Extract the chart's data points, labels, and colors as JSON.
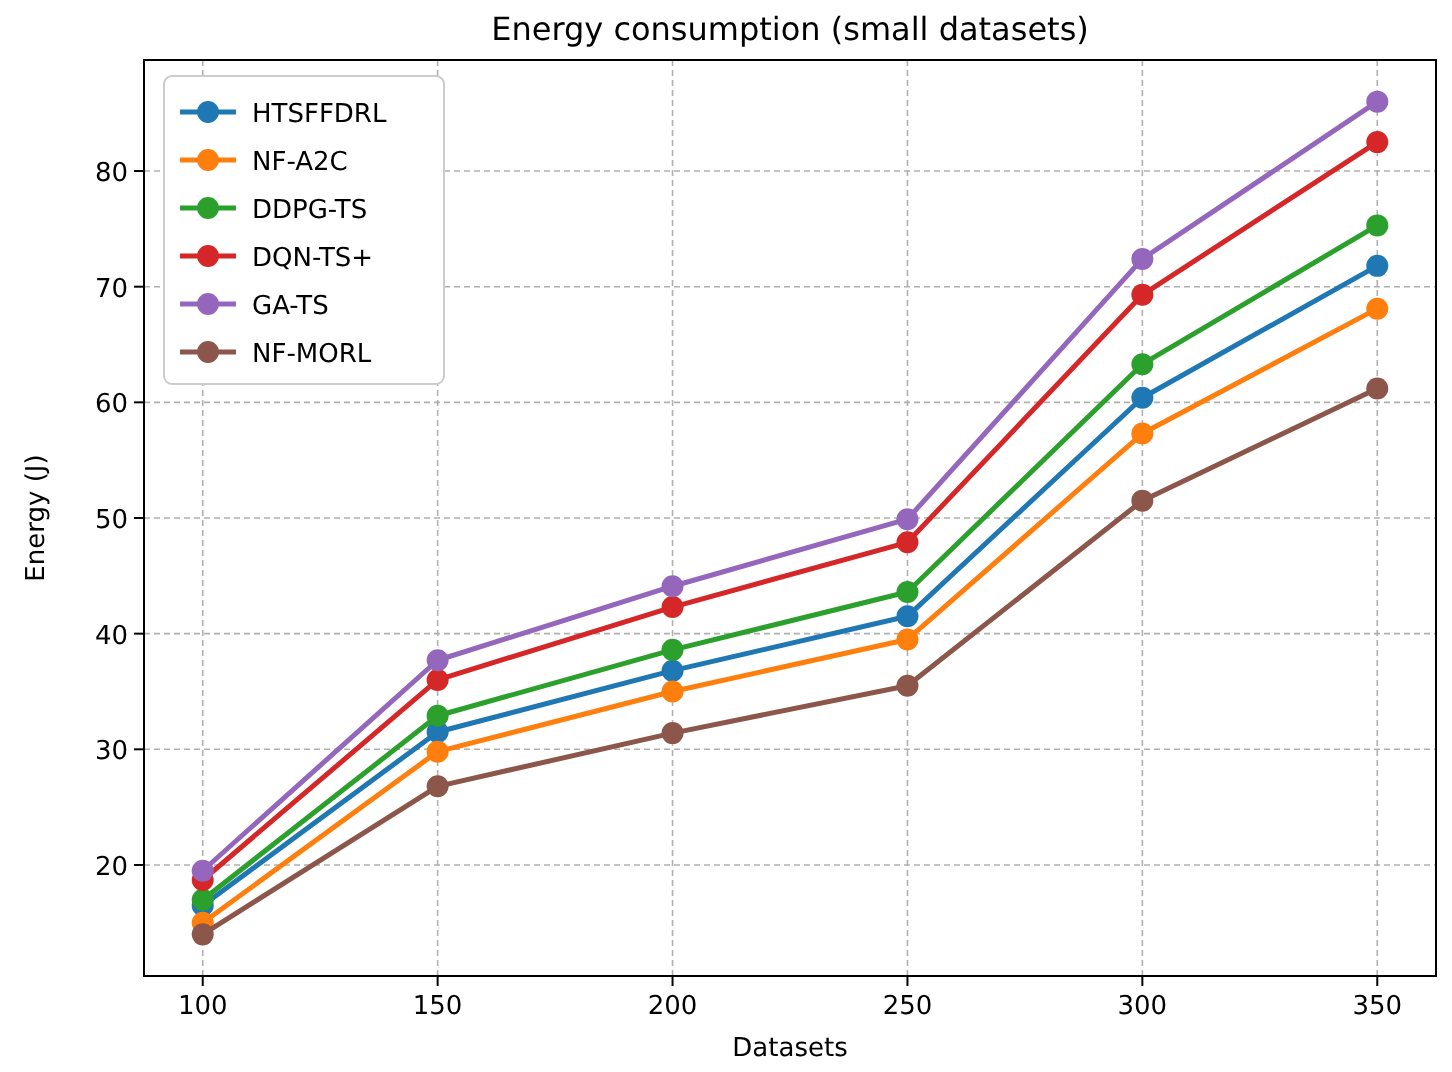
{
  "chart_data": {
    "type": "line",
    "title": "Energy consumption (small datasets)",
    "xlabel": "Datasets",
    "ylabel": "Energy (J)",
    "x": [
      100,
      150,
      200,
      250,
      300,
      350
    ],
    "xlim": [
      87.5,
      362.5
    ],
    "xticks": [
      100,
      150,
      200,
      250,
      300,
      350
    ],
    "ylim": [
      10.4,
      89.6
    ],
    "yticks": [
      20,
      30,
      40,
      50,
      60,
      70,
      80
    ],
    "grid": true,
    "legend": "top left",
    "marker": "circle",
    "line_style": "solid",
    "series": [
      {
        "name": "HTSFFDRL",
        "color": "#1f77b4",
        "values": [
          16.5,
          31.5,
          36.8,
          41.5,
          60.4,
          71.8
        ]
      },
      {
        "name": "NF-A2C",
        "color": "#ff7f0e",
        "values": [
          15,
          29.8,
          35,
          39.5,
          57.3,
          68.1
        ]
      },
      {
        "name": "DDPG-TS",
        "color": "#2ca02c",
        "values": [
          17,
          32.9,
          38.6,
          43.6,
          63.3,
          75.3
        ]
      },
      {
        "name": "DQN-TS+",
        "color": "#d62728",
        "values": [
          18.7,
          36,
          42.3,
          47.9,
          69.3,
          82.5
        ]
      },
      {
        "name": "GA-TS",
        "color": "#9467bd",
        "values": [
          19.5,
          37.7,
          44.1,
          49.9,
          72.4,
          86
        ]
      },
      {
        "name": "NF-MORL",
        "color": "#8c564b",
        "values": [
          14,
          26.8,
          31.4,
          35.5,
          51.5,
          61.2
        ]
      }
    ]
  }
}
